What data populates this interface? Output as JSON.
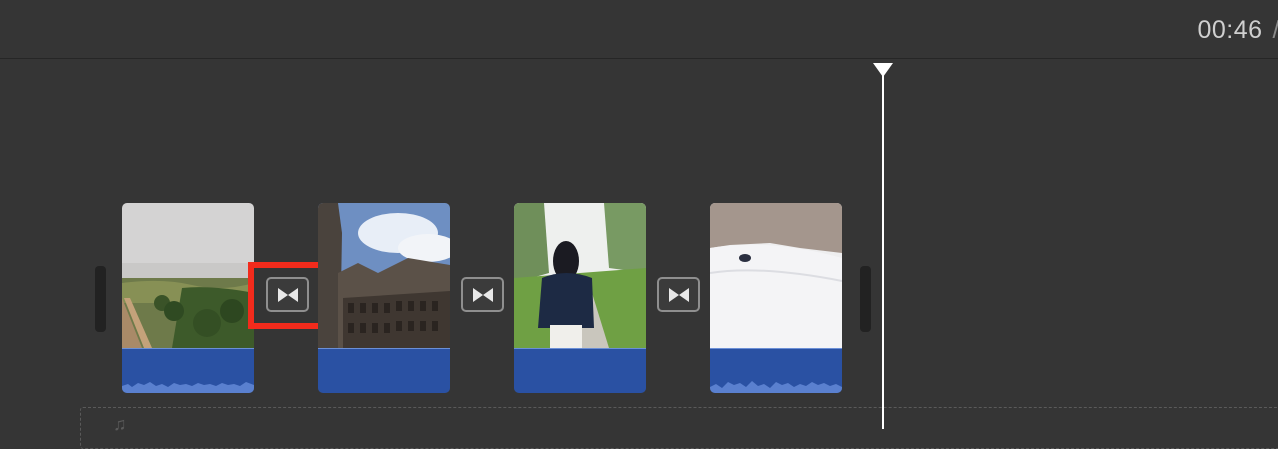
{
  "header": {
    "current_time": "00:46",
    "separator": "/"
  },
  "timeline": {
    "clips": [
      {
        "name": "aerial-countryside",
        "icon": "landscape-thumbnail"
      },
      {
        "name": "gothic-building",
        "icon": "building-thumbnail"
      },
      {
        "name": "person-walking-path",
        "icon": "person-thumbnail"
      },
      {
        "name": "snowy-hill",
        "icon": "snow-thumbnail"
      }
    ],
    "transitions": [
      {
        "icon": "bowtie-transition-icon",
        "highlighted": true
      },
      {
        "icon": "bowtie-transition-icon",
        "highlighted": false
      },
      {
        "icon": "bowtie-transition-icon",
        "highlighted": false
      }
    ],
    "highlight_color": "#f22b1c",
    "audio_color": "#2a51a3"
  }
}
